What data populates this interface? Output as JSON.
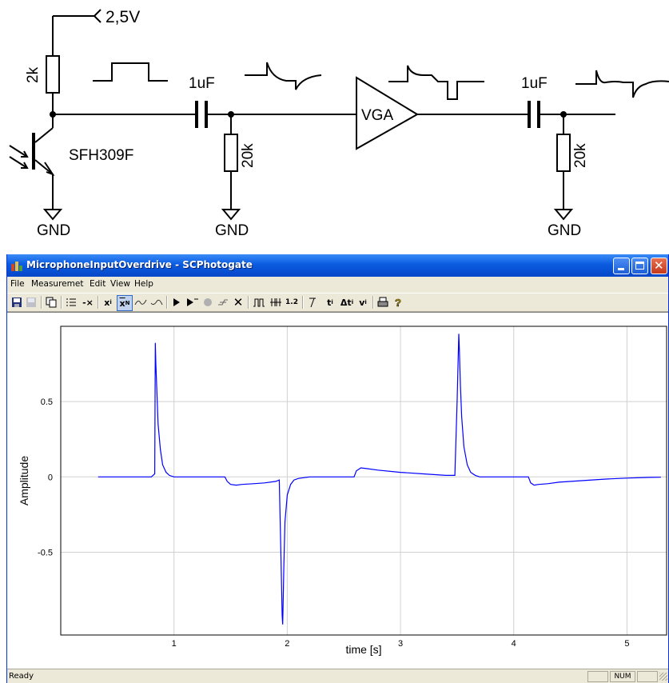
{
  "schematic": {
    "supply_label": "2,5V",
    "resistor1_label": "2k",
    "cap1_label": "1uF",
    "resistor2_label": "20k",
    "vga_label": "VGA",
    "cap2_label": "1uF",
    "resistor3_label": "20k",
    "transistor_label": "SFH309F",
    "gnd_label": "GND"
  },
  "window": {
    "title": "MicrophoneInputOverdrive - SCPhotogate",
    "colors": {
      "titlebar": "#0a5be0",
      "trace": "#0000ff",
      "grid": "#d0d0d0"
    }
  },
  "menu": {
    "items": [
      "File",
      "Measuremet",
      "Edit",
      "View",
      "Help"
    ]
  },
  "toolbar": {
    "icons": [
      "save-icon",
      "disk-icon",
      "copy-icon",
      "list-icon",
      "minus-x-icon",
      "x-i-icon",
      "x-n-icon",
      "curve-rise-icon",
      "curve-fall-icon",
      "play-icon",
      "play-marker-icon",
      "record-icon",
      "trigger-icon",
      "cross-icon",
      "pulse-icon",
      "pulse-double-icon",
      "decimal-icon",
      "time-tool-icon",
      "t-i-icon",
      "delta-t-icon",
      "v-i-icon",
      "print-icon",
      "help-icon"
    ],
    "labels": {
      "x_i": "x",
      "x_n": "x",
      "t_i": "t",
      "delta_t_i": "Δt",
      "v_i": "v",
      "decimal": "1.2",
      "minus_x": "-×"
    }
  },
  "chart_data": {
    "type": "line",
    "xlabel": "time [s]",
    "ylabel": "Amplitude",
    "xlim": [
      0.0,
      5.35
    ],
    "ylim": [
      -1.05,
      1.0
    ],
    "xticks": [
      1,
      2,
      3,
      4,
      5
    ],
    "yticks": [
      0.5,
      0,
      -0.5
    ],
    "ytick_labels": [
      "0.5",
      "0",
      "-0.5"
    ],
    "grid": true,
    "series": [
      {
        "color": "#0000ff",
        "x": [
          0.33,
          0.8,
          0.83,
          0.835,
          0.84,
          0.85,
          0.86,
          0.88,
          0.9,
          0.93,
          0.96,
          1.0,
          1.45,
          1.47,
          1.5,
          1.55,
          1.6,
          1.7,
          1.8,
          1.9,
          1.93,
          1.945,
          1.955,
          1.96,
          1.97,
          1.98,
          2.0,
          2.03,
          2.06,
          2.1,
          2.15,
          2.2,
          2.59,
          2.61,
          2.65,
          2.7,
          2.8,
          3.0,
          3.2,
          3.4,
          3.48,
          3.5,
          3.515,
          3.52,
          3.53,
          3.54,
          3.56,
          3.59,
          3.62,
          3.66,
          3.7,
          4.13,
          4.15,
          4.18,
          4.22,
          4.3,
          4.4,
          4.6,
          4.8,
          5.0,
          5.2,
          5.3
        ],
        "y": [
          0,
          0,
          0.02,
          0.89,
          0.75,
          0.55,
          0.35,
          0.18,
          0.08,
          0.03,
          0.01,
          0,
          0,
          -0.03,
          -0.05,
          -0.055,
          -0.05,
          -0.045,
          -0.04,
          -0.03,
          -0.02,
          -0.55,
          -0.92,
          -0.98,
          -0.6,
          -0.3,
          -0.12,
          -0.05,
          -0.02,
          -0.01,
          -0.005,
          0,
          0,
          0.04,
          0.06,
          0.055,
          0.045,
          0.03,
          0.02,
          0.01,
          0.01,
          0.5,
          0.95,
          0.85,
          0.6,
          0.4,
          0.2,
          0.08,
          0.03,
          0.01,
          0,
          0,
          -0.04,
          -0.055,
          -0.05,
          -0.045,
          -0.035,
          -0.025,
          -0.015,
          -0.008,
          -0.003,
          -0.002
        ]
      }
    ]
  },
  "status": {
    "text": "Ready",
    "num": "NUM"
  }
}
